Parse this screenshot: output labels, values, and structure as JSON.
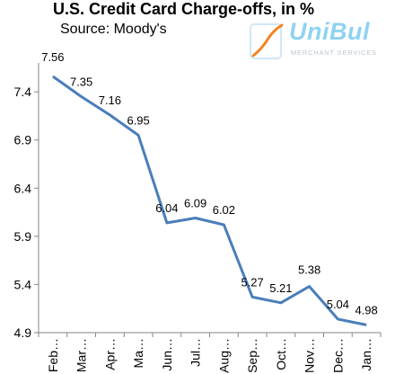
{
  "header": {
    "title": "U.S. Credit Card Charge-offs, in %",
    "subtitle": "Source: Moody's"
  },
  "logo": {
    "name": "UniBul",
    "tagline": "MERCHANT SERVICES",
    "name_color": "#8fd2f2",
    "mark_color": "#f58220"
  },
  "chart_data": {
    "type": "line",
    "title": "U.S. Credit Card Charge-offs, in %",
    "subtitle": "Source: Moody's",
    "categories": [
      "Feb…",
      "Mar…",
      "Apr…",
      "Ma…",
      "Jun…",
      "Jul…",
      "Aug…",
      "Sep…",
      "Oct…",
      "Nov…",
      "Dec…",
      "Jan…"
    ],
    "series": [
      {
        "values": [
          7.56,
          7.35,
          7.16,
          6.95,
          6.04,
          6.09,
          6.02,
          5.27,
          5.21,
          5.38,
          5.04,
          4.98
        ],
        "color": "#4a7ebb"
      }
    ],
    "data_labels": [
      "7.56",
      "7.35",
      "7.16",
      "6.95",
      "6.04",
      "6.09",
      "6.02",
      "5.27",
      "5.21",
      "5.38",
      "5.04",
      "4.98"
    ],
    "yticks": [
      "4.9",
      "5.4",
      "5.9",
      "6.4",
      "6.9",
      "7.4"
    ],
    "yticks_values": [
      4.9,
      5.4,
      5.9,
      6.4,
      6.9,
      7.4
    ],
    "ylim": [
      4.9,
      7.7
    ],
    "grid": false,
    "legend": "none"
  }
}
